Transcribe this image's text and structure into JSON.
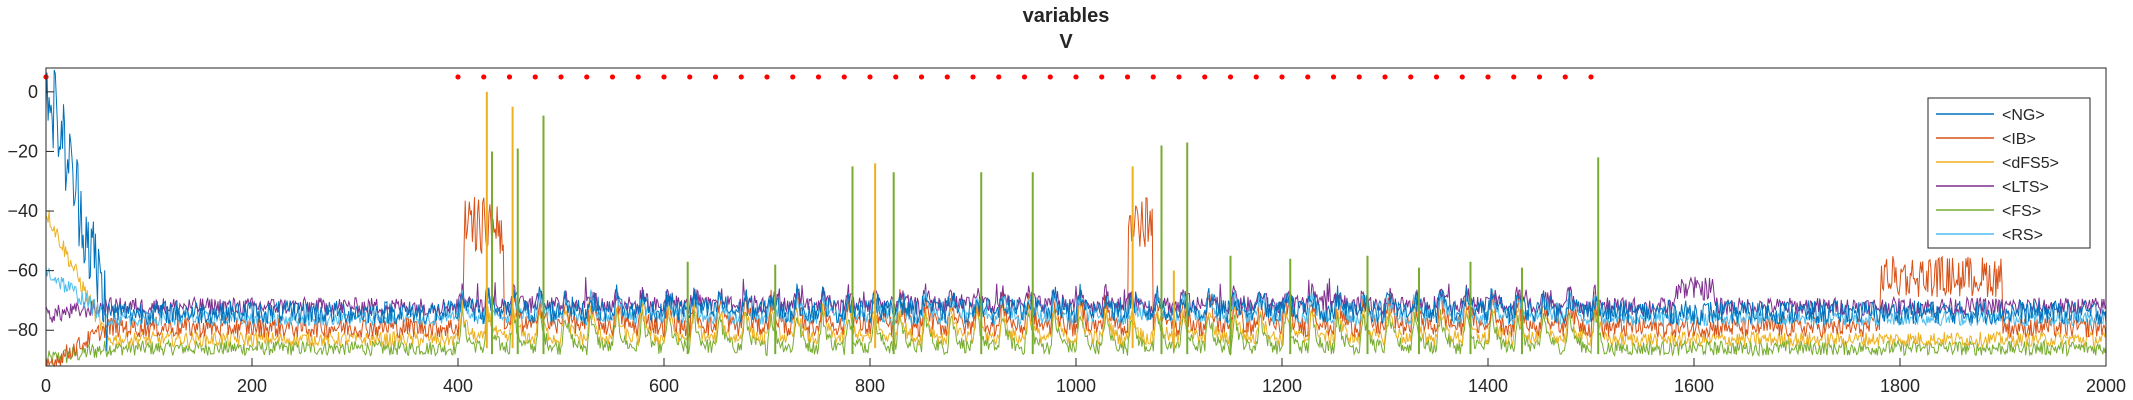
{
  "chart_data": {
    "type": "line",
    "title": "variables",
    "subtitle": "V",
    "xlabel": "",
    "ylabel": "",
    "xlim": [
      0,
      2000
    ],
    "ylim": [
      -92,
      8
    ],
    "x_ticks": [
      "0",
      "200",
      "400",
      "600",
      "800",
      "1000",
      "1200",
      "1400",
      "1600",
      "1800",
      "2000"
    ],
    "y_ticks": [
      "0",
      "−20",
      "−40",
      "−60",
      "−80"
    ],
    "y_tick_values": [
      0,
      -20,
      -40,
      -60,
      -80
    ],
    "x_tick_values": [
      0,
      200,
      400,
      600,
      800,
      1000,
      1200,
      1400,
      1600,
      1800,
      2000
    ],
    "grid": false,
    "legend_position": "top-right",
    "series": [
      {
        "name": "<NG>",
        "color": "#0072BD"
      },
      {
        "name": "<IB>",
        "color": "#D95319"
      },
      {
        "name": "<dFS5>",
        "color": "#EDB120"
      },
      {
        "name": "<LTS>",
        "color": "#7E2F8E"
      },
      {
        "name": "<FS>",
        "color": "#77AC30"
      },
      {
        "name": "<RS>",
        "color": "#4DBEEE"
      }
    ],
    "markers": {
      "color": "#FF0000",
      "y": 5,
      "x": [
        0,
        400,
        425,
        450,
        475,
        500,
        525,
        550,
        575,
        600,
        625,
        650,
        675,
        700,
        725,
        750,
        775,
        800,
        825,
        850,
        875,
        900,
        925,
        950,
        975,
        1000,
        1025,
        1050,
        1075,
        1100,
        1125,
        1150,
        1175,
        1200,
        1225,
        1250,
        1275,
        1300,
        1325,
        1350,
        1375,
        1400,
        1425,
        1450,
        1475,
        1500
      ]
    },
    "fs_spikes": [
      {
        "x": 433,
        "y": -20
      },
      {
        "x": 458,
        "y": -19
      },
      {
        "x": 483,
        "y": -8
      },
      {
        "x": 623,
        "y": -57
      },
      {
        "x": 708,
        "y": -58
      },
      {
        "x": 783,
        "y": -25
      },
      {
        "x": 823,
        "y": -27
      },
      {
        "x": 908,
        "y": -27
      },
      {
        "x": 958,
        "y": -27
      },
      {
        "x": 1083,
        "y": -18
      },
      {
        "x": 1108,
        "y": -17
      },
      {
        "x": 1150,
        "y": -55
      },
      {
        "x": 1208,
        "y": -56
      },
      {
        "x": 1283,
        "y": -55
      },
      {
        "x": 1333,
        "y": -59
      },
      {
        "x": 1383,
        "y": -57
      },
      {
        "x": 1433,
        "y": -59
      },
      {
        "x": 1507,
        "y": -22
      }
    ],
    "dfs_spikes": [
      {
        "x": 428,
        "y": 0
      },
      {
        "x": 453,
        "y": -5
      },
      {
        "x": 805,
        "y": -24
      },
      {
        "x": 1055,
        "y": -25
      },
      {
        "x": 1095,
        "y": -60
      }
    ]
  }
}
